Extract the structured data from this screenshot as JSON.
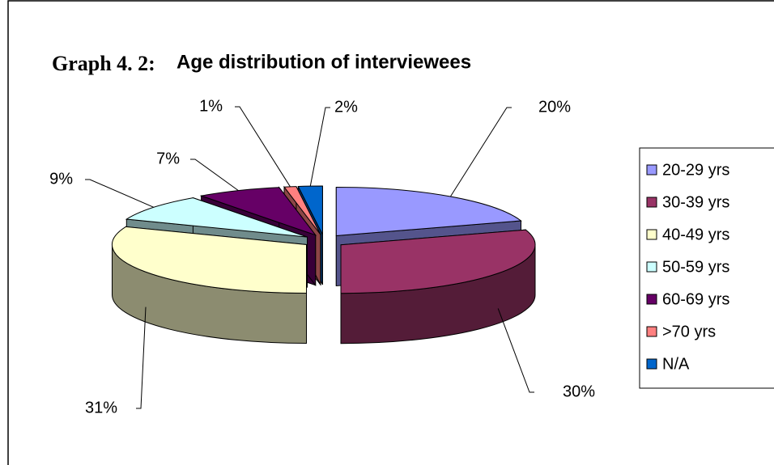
{
  "chart_data": {
    "type": "pie",
    "title_prefix": "Graph 4. 2:",
    "title": "Age distribution of interviewees",
    "categories": [
      "20-29 yrs",
      "30-39 yrs",
      "40-49 yrs",
      "50-59 yrs",
      "60-69 yrs",
      ">70 yrs",
      "N/A"
    ],
    "values": [
      20,
      30,
      31,
      9,
      7,
      1,
      2
    ],
    "value_labels": [
      "20%",
      "30%",
      "31%",
      "9%",
      "7%",
      "1%",
      "2%"
    ],
    "colors": [
      "#9999ff",
      "#993366",
      "#ffffcc",
      "#ccffff",
      "#660066",
      "#ff8080",
      "#0066cc"
    ],
    "legend": "right"
  }
}
